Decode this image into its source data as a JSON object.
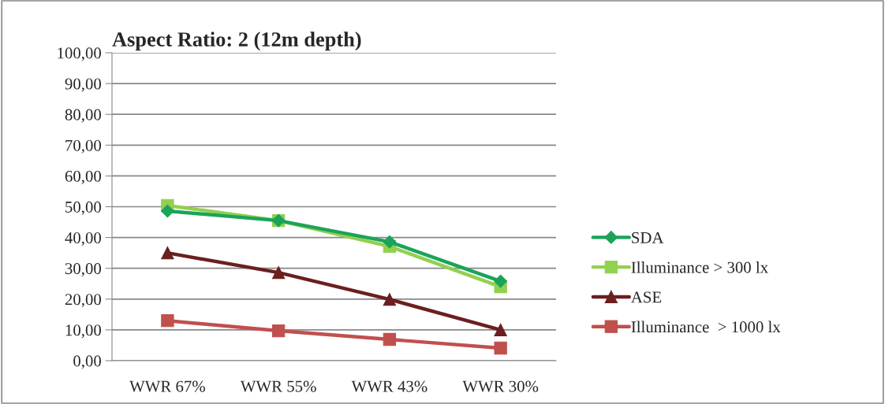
{
  "chart_data": {
    "type": "line",
    "title": "Aspect Ratio: 2 (12m depth)",
    "categories": [
      "WWR 67%",
      "WWR 55%",
      "WWR 43%",
      "WWR 30%"
    ],
    "series": [
      {
        "name": "SDA",
        "color": "#1ba35a",
        "marker": "diamond",
        "values": [
          48.6,
          45.5,
          38.6,
          25.8
        ]
      },
      {
        "name": "Illuminance > 300 lx",
        "color": "#92d050",
        "marker": "square",
        "values": [
          50.4,
          45.5,
          37.1,
          24.0
        ]
      },
      {
        "name": "ASE",
        "color": "#6b1f1f",
        "marker": "triangle",
        "values": [
          35.0,
          28.6,
          19.9,
          10.0
        ]
      },
      {
        "name": "Illuminance  > 1000 lx",
        "color": "#c0504d",
        "marker": "square",
        "values": [
          13.0,
          9.7,
          6.9,
          4.1
        ]
      }
    ],
    "ylim": [
      0,
      100
    ],
    "yticks": [
      {
        "value": 0,
        "label": "0,00"
      },
      {
        "value": 10,
        "label": "10,00"
      },
      {
        "value": 20,
        "label": "20,00"
      },
      {
        "value": 30,
        "label": "30,00"
      },
      {
        "value": 40,
        "label": "40,00"
      },
      {
        "value": 50,
        "label": "50,00"
      },
      {
        "value": 60,
        "label": "60,00"
      },
      {
        "value": 70,
        "label": "70,00"
      },
      {
        "value": 80,
        "label": "80,00"
      },
      {
        "value": 90,
        "label": "90,00"
      },
      {
        "value": 100,
        "label": "100,00"
      }
    ],
    "grid": "y",
    "legend": "right",
    "line_style": "solid"
  }
}
